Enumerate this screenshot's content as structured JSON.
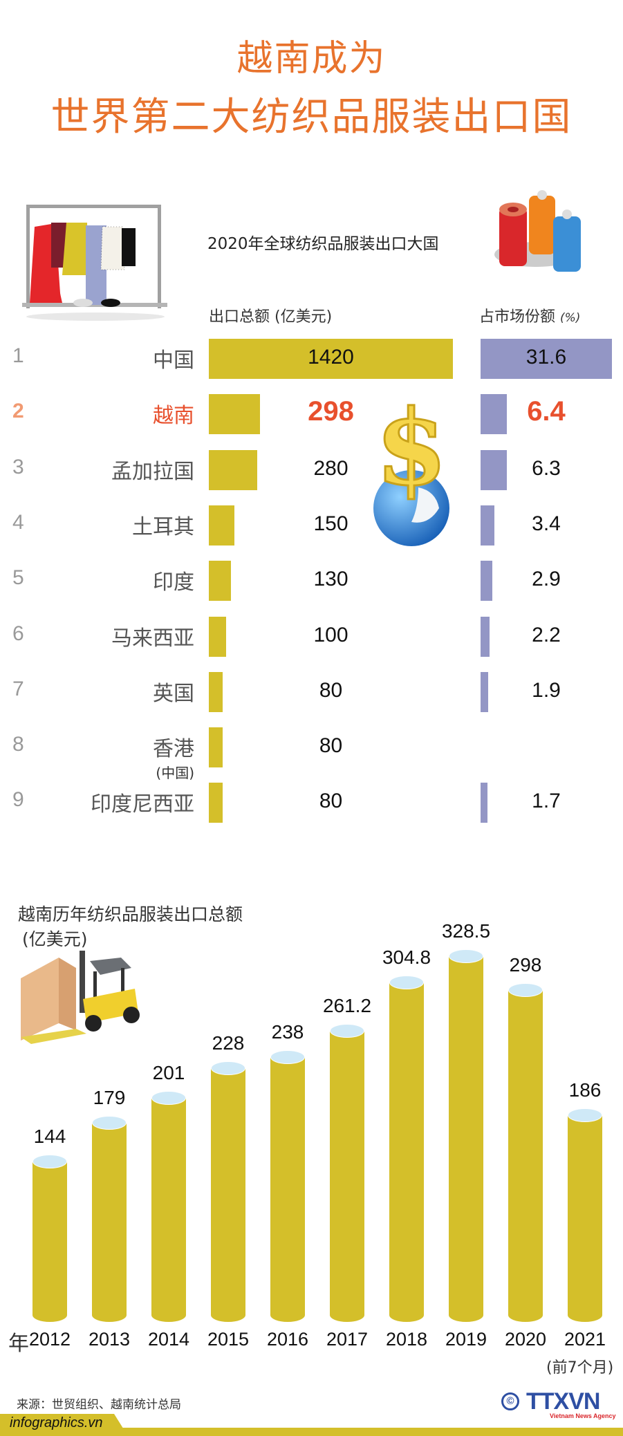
{
  "header": {
    "title_line1": "越南成为",
    "title_line2": "世界第二大纺织品服装出口国",
    "title_color": "#e8732d"
  },
  "ranking": {
    "subtitle": "2020年全球纺织品服装出口大国",
    "export_col_label": "出口总额",
    "export_col_unit": "(亿美元)",
    "share_col_label": "占市场份额",
    "share_col_unit": "(%)",
    "export_bar_color": "#d4bf2a",
    "share_bar_color": "#9396c5",
    "highlight_color": "#e8502d",
    "rows": [
      {
        "rank": "1",
        "country": "中国",
        "country_sub": "",
        "export": "1420",
        "share": "31.6"
      },
      {
        "rank": "2",
        "country": "越南",
        "country_sub": "",
        "export": "298",
        "share": "6.4"
      },
      {
        "rank": "3",
        "country": "孟加拉国",
        "country_sub": "",
        "export": "280",
        "share": "6.3"
      },
      {
        "rank": "4",
        "country": "土耳其",
        "country_sub": "",
        "export": "150",
        "share": "3.4"
      },
      {
        "rank": "5",
        "country": "印度",
        "country_sub": "",
        "export": "130",
        "share": "2.9"
      },
      {
        "rank": "6",
        "country": "马来西亚",
        "country_sub": "",
        "export": "100",
        "share": "2.2"
      },
      {
        "rank": "7",
        "country": "英国",
        "country_sub": "",
        "export": "80",
        "share": "1.9"
      },
      {
        "rank": "8",
        "country": "香港",
        "country_sub": "(中国)",
        "export": "80",
        "share": ""
      },
      {
        "rank": "9",
        "country": "印度尼西亚",
        "country_sub": "",
        "export": "80",
        "share": "1.7"
      }
    ]
  },
  "history": {
    "title_line1": "越南历年纺织品服装出口总额",
    "title_line2": "(亿美元)",
    "year_prefix": "年",
    "last_year_note": "(前7个月)"
  },
  "footer": {
    "source": "来源：世贸组织、越南统计总局",
    "site": "infographics.vn",
    "logo_copyright": "©",
    "logo_text": "TTXVN",
    "logo_tagline": "Vietnam News Agency"
  },
  "chart_data": [
    {
      "type": "bar",
      "orientation": "horizontal",
      "title": "2020年全球纺织品服装出口大国",
      "categories": [
        "中国",
        "越南",
        "孟加拉国",
        "土耳其",
        "印度",
        "马来西亚",
        "英国",
        "香港(中国)",
        "印度尼西亚"
      ],
      "series": [
        {
          "name": "出口总额 (亿美元)",
          "values": [
            1420,
            298,
            280,
            150,
            130,
            100,
            80,
            80,
            80
          ]
        },
        {
          "name": "占市场份额 (%)",
          "values": [
            31.6,
            6.4,
            6.3,
            3.4,
            2.9,
            2.2,
            1.9,
            null,
            1.7
          ]
        }
      ],
      "highlight": "越南"
    },
    {
      "type": "bar",
      "title": "越南历年纺织品服装出口总额",
      "ylabel": "亿美元",
      "xlabel": "年",
      "categories": [
        "2012",
        "2013",
        "2014",
        "2015",
        "2016",
        "2017",
        "2018",
        "2019",
        "2020",
        "2021"
      ],
      "values": [
        144,
        179,
        201,
        228,
        238,
        261.2,
        304.8,
        328.5,
        298,
        186
      ],
      "annotations": [
        {
          "category": "2021",
          "text": "(前7个月)"
        }
      ],
      "ylim": [
        0,
        340
      ],
      "grid": false
    }
  ]
}
